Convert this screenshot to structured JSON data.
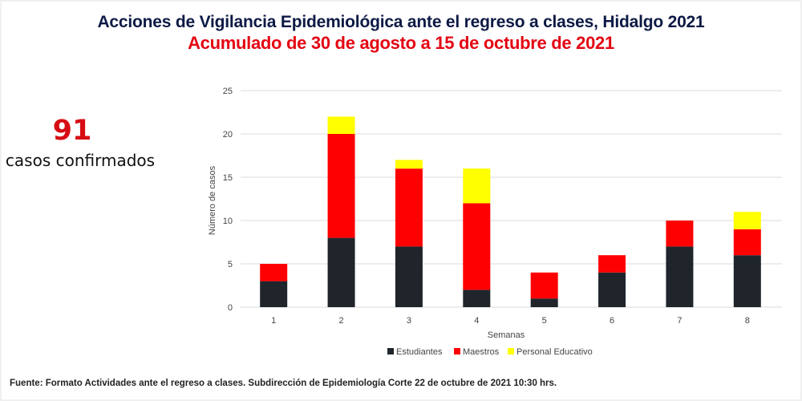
{
  "header": {
    "title": "Acciones de Vigilancia Epidemiológica ante el regreso a clases, Hidalgo 2021",
    "subtitle": "Acumulado de 30 de agosto a 15 de octubre de 2021"
  },
  "summary": {
    "total": "91",
    "label": "casos confirmados"
  },
  "footer": {
    "source": "Fuente: Formato Actividades ante el regreso a clases. Subdirección de Epidemiología Corte 22 de octubre de 2021  10:30  hrs."
  },
  "chart_data": {
    "type": "bar",
    "stacked": true,
    "title": "",
    "xlabel": "Semanas",
    "ylabel": "Número de casos",
    "categories": [
      "1",
      "2",
      "3",
      "4",
      "5",
      "6",
      "7",
      "8"
    ],
    "ylim": [
      0,
      25
    ],
    "yticks": [
      0,
      5,
      10,
      15,
      20,
      25
    ],
    "grid": true,
    "legend_position": "bottom",
    "series": [
      {
        "name": "Estudiantes",
        "color": "#1f252b",
        "values": [
          3,
          8,
          7,
          2,
          1,
          4,
          7,
          6
        ]
      },
      {
        "name": "Maestros",
        "color": "#ff0000",
        "values": [
          2,
          12,
          9,
          10,
          3,
          2,
          3,
          3
        ]
      },
      {
        "name": "Personal Educativo",
        "color": "#ffff00",
        "values": [
          0,
          2,
          1,
          4,
          0,
          0,
          0,
          2
        ]
      }
    ]
  }
}
